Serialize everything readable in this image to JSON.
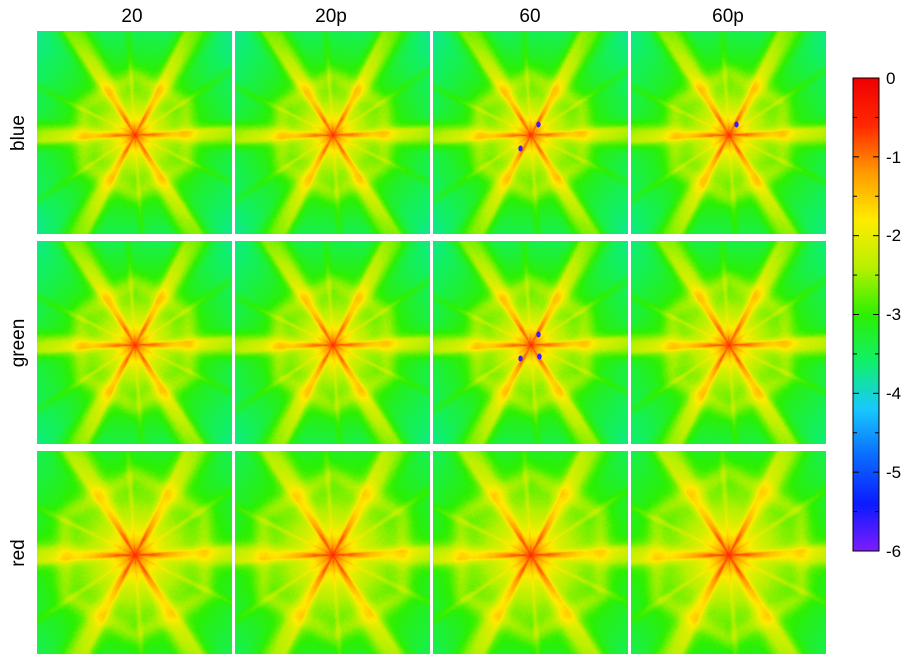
{
  "chart_data": {
    "type": "heatmap",
    "title": "",
    "columns": [
      "20",
      "20p",
      "60",
      "60p"
    ],
    "rows": [
      "blue",
      "green",
      "red"
    ],
    "colorbar": {
      "ticks": [
        0,
        -1,
        -2,
        -3,
        -4,
        -5,
        -6
      ],
      "tick_labels": [
        "0",
        "-1",
        "-2",
        "-3",
        "-4",
        "-5",
        "-6"
      ],
      "range": [
        -6,
        0
      ],
      "colors": [
        "#7d1cff",
        "#0b1bff",
        "#0a6bff",
        "#18c8ff",
        "#10f06a",
        "#2cf000",
        "#b8f000",
        "#ffec00",
        "#ff9a00",
        "#ff2800",
        "#f00000"
      ],
      "placement": "right"
    },
    "panels": [
      {
        "row": "blue",
        "col": "20",
        "star_strength": 1.0,
        "spread": 1.0,
        "artifact_dots": 0
      },
      {
        "row": "blue",
        "col": "20p",
        "star_strength": 1.0,
        "spread": 1.0,
        "artifact_dots": 0
      },
      {
        "row": "blue",
        "col": "60",
        "star_strength": 1.0,
        "spread": 1.0,
        "artifact_dots": 2
      },
      {
        "row": "blue",
        "col": "60p",
        "star_strength": 1.0,
        "spread": 1.05,
        "artifact_dots": 1
      },
      {
        "row": "green",
        "col": "20",
        "star_strength": 1.0,
        "spread": 1.05,
        "artifact_dots": 0
      },
      {
        "row": "green",
        "col": "20p",
        "star_strength": 1.0,
        "spread": 1.05,
        "artifact_dots": 0
      },
      {
        "row": "green",
        "col": "60",
        "star_strength": 1.0,
        "spread": 1.05,
        "artifact_dots": 3
      },
      {
        "row": "green",
        "col": "60p",
        "star_strength": 1.0,
        "spread": 1.1,
        "artifact_dots": 0
      },
      {
        "row": "red",
        "col": "20",
        "star_strength": 0.9,
        "spread": 1.35,
        "artifact_dots": 0
      },
      {
        "row": "red",
        "col": "20p",
        "star_strength": 0.9,
        "spread": 1.35,
        "artifact_dots": 0
      },
      {
        "row": "red",
        "col": "60",
        "star_strength": 0.9,
        "spread": 1.35,
        "artifact_dots": 0
      },
      {
        "row": "red",
        "col": "60p",
        "star_strength": 0.9,
        "spread": 1.4,
        "artifact_dots": 0
      }
    ]
  }
}
